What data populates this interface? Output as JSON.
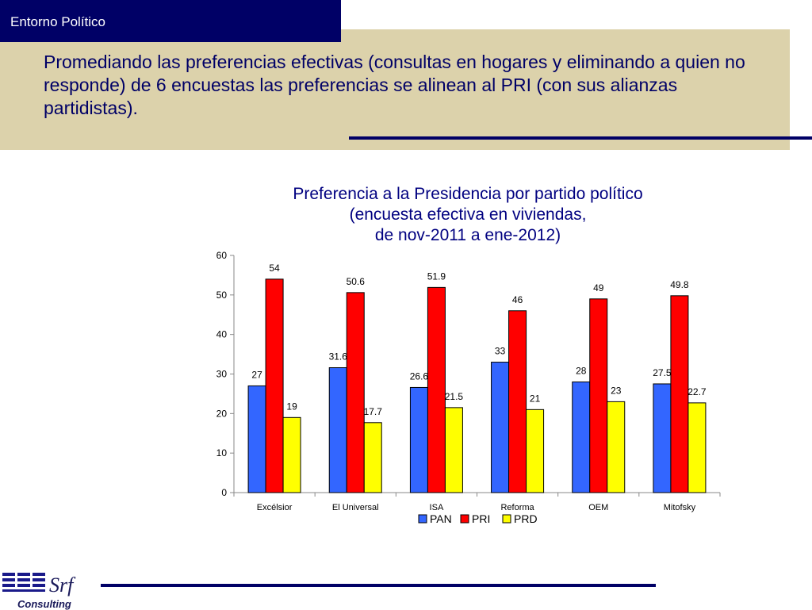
{
  "header": {
    "tag": "Entorno Político",
    "intro": "Promediando las preferencias efectivas (consultas en hogares y eliminando a quien no responde) de 6 encuestas las preferencias se alinean al PRI (con sus alianzas partidistas)."
  },
  "chart_data": {
    "type": "bar",
    "title_lines": [
      "Preferencia a la Presidencia por partido político",
      "(encuesta efectiva en viviendas,",
      "de nov-2011 a ene-2012)"
    ],
    "categories": [
      "Excélsior",
      "El Universal",
      "ISA",
      "Reforma",
      "OEM",
      "Mitofsky"
    ],
    "series": [
      {
        "name": "PAN",
        "color": "#3366ff",
        "values": [
          27,
          31.6,
          26.6,
          33,
          28,
          27.5
        ]
      },
      {
        "name": "PRI",
        "color": "#ff0000",
        "values": [
          54,
          50.6,
          51.9,
          46,
          49,
          49.8
        ]
      },
      {
        "name": "PRD",
        "color": "#ffff00",
        "values": [
          19,
          17.7,
          21.5,
          21,
          23,
          22.7
        ]
      }
    ],
    "ylim": [
      0,
      60
    ],
    "yticks": [
      0,
      10,
      20,
      30,
      40,
      50,
      60
    ],
    "xlabel": "",
    "ylabel": "",
    "grid": false,
    "legend_position": "bottom"
  },
  "logo": {
    "brand": "Srf",
    "sub": "Consulting"
  }
}
